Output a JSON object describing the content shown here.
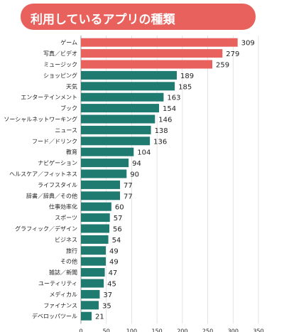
{
  "title": "利用しているアプリの種類",
  "colors": {
    "highlight": "#e8615c",
    "normal": "#1f7a70",
    "title_bg": "#e8615c",
    "axis": "#9a9a9a"
  },
  "chart_data": {
    "type": "bar",
    "orientation": "horizontal",
    "title": "利用しているアプリの種類",
    "categories": [
      "ゲーム",
      "写真／ビデオ",
      "ミュージック",
      "ショッピング",
      "天気",
      "エンターテインメント",
      "ブック",
      "ソーシャルネットワーキング",
      "ニュース",
      "フード／ドリンク",
      "教育",
      "ナビゲーション",
      "ヘルスケア／フィットネス",
      "ライフスタイル",
      "辞書／辞典／その他",
      "仕事効率化",
      "スポーツ",
      "グラフィック／デザイン",
      "ビジネス",
      "旅行",
      "その他",
      "雑誌／新聞",
      "ユーティリティ",
      "メディカル",
      "ファイナンス",
      "デベロッパツール"
    ],
    "values": [
      309,
      279,
      259,
      189,
      185,
      163,
      154,
      146,
      138,
      136,
      104,
      94,
      90,
      77,
      77,
      60,
      57,
      56,
      54,
      49,
      49,
      47,
      45,
      37,
      35,
      21
    ],
    "highlighted_count": 3,
    "xlim": [
      0,
      350
    ],
    "xticks": [
      0,
      50,
      100,
      150,
      200,
      250,
      300,
      350
    ],
    "grid": true
  }
}
